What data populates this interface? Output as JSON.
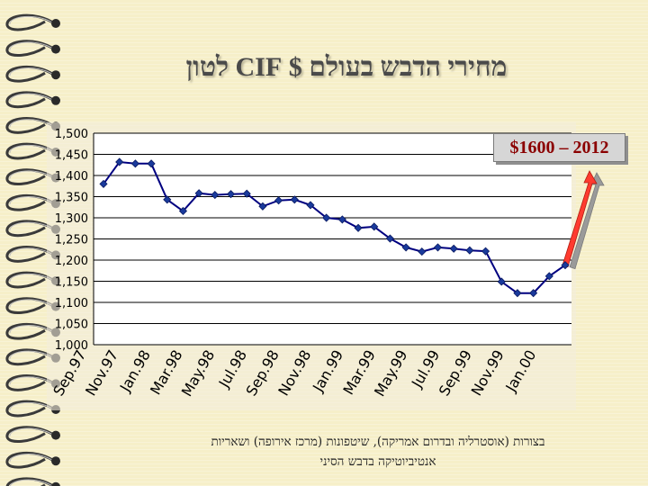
{
  "title": "מחירי הדבש בעולם $ CIF לטון",
  "callout": "$1600 – 2012",
  "footnote": {
    "line1": "בצורות (אוסטרליה ובדרום אמריקה), שיטפונות (מרכז אירופה) ושאריות",
    "line2": "אנטיביוטיקה בדבש הסיני"
  },
  "colors": {
    "line": "#000080",
    "marker": "#1a3a9c",
    "arrow_fill": "#ff3b2f",
    "arrow_shadow": "#9a9a9a",
    "callout_text": "#8b0000",
    "plot_bg": "#ffffff"
  },
  "chart_data": {
    "type": "line",
    "title": "מחירי הדבש בעולם $ CIF לטון",
    "xlabel": "",
    "ylabel": "",
    "ylim": [
      1000,
      1500
    ],
    "yticks": [
      "1,000",
      "1,050",
      "1,100",
      "1,150",
      "1,200",
      "1,250",
      "1,300",
      "1,350",
      "1,400",
      "1,450",
      "1,500"
    ],
    "xtick_labels": [
      "Sep.97",
      "Nov.97",
      "Jan.98",
      "Mar.98",
      "May.98",
      "Jul.98",
      "Sep.98",
      "Nov.98",
      "Jan.99",
      "Mar.99",
      "May.99",
      "Jul.99",
      "Sep.99",
      "Nov.99",
      "Jan.00"
    ],
    "grid": "horizontal",
    "series": [
      {
        "values": [
          1380,
          1432,
          1428,
          1428,
          1343,
          1316,
          1358,
          1354,
          1356,
          1357,
          1327,
          1341,
          1343,
          1330,
          1300,
          1296,
          1276,
          1279,
          1251,
          1230,
          1220,
          1230,
          1227,
          1223,
          1221,
          1149,
          1122,
          1122,
          1162,
          1188
        ]
      }
    ],
    "annotation": {
      "text": "$1600 – 2012",
      "arrow": "upward from last data point"
    }
  }
}
